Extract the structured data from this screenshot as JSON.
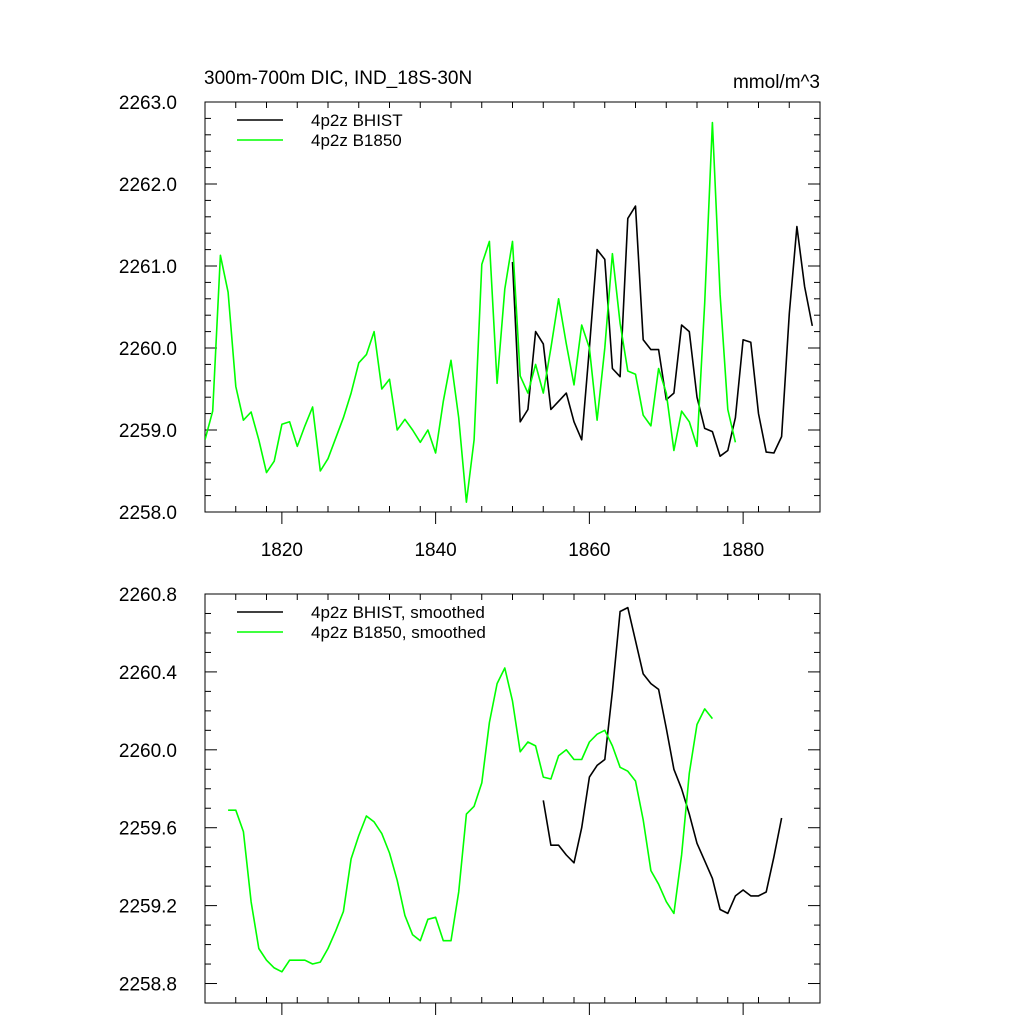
{
  "chart_data": [
    {
      "type": "line",
      "title": "300m-700m DIC, IND_18S-30N",
      "units": "mmol/m^3",
      "xlim": [
        1810,
        1890
      ],
      "ylim": [
        2258.0,
        2263.0
      ],
      "xticks": [
        {
          "value": 1820,
          "label": "1820"
        },
        {
          "value": 1840,
          "label": "1840"
        },
        {
          "value": 1860,
          "label": "1860"
        },
        {
          "value": 1880,
          "label": "1880"
        }
      ],
      "yticks": [
        {
          "value": 2258.0,
          "label": "2258.0"
        },
        {
          "value": 2259.0,
          "label": "2259.0"
        },
        {
          "value": 2260.0,
          "label": "2260.0"
        },
        {
          "value": 2261.0,
          "label": "2261.0"
        },
        {
          "value": 2262.0,
          "label": "2262.0"
        },
        {
          "value": 2263.0,
          "label": "2263.0"
        }
      ],
      "legend_position": "top-left",
      "series": [
        {
          "name": "4p2z BHIST",
          "color": "#000000",
          "x": [
            1850,
            1851,
            1852,
            1853,
            1854,
            1855,
            1856,
            1857,
            1858,
            1859,
            1860,
            1861,
            1862,
            1863,
            1864,
            1865,
            1866,
            1867,
            1868,
            1869,
            1870,
            1871,
            1872,
            1873,
            1874,
            1875,
            1876,
            1877,
            1878,
            1879,
            1880,
            1881,
            1882,
            1883,
            1884,
            1885,
            1886,
            1887,
            1888,
            1889
          ],
          "y": [
            2261.05,
            2259.1,
            2259.25,
            2260.2,
            2260.05,
            2259.25,
            2259.35,
            2259.45,
            2259.1,
            2258.88,
            2260.0,
            2261.2,
            2261.08,
            2259.75,
            2259.65,
            2261.58,
            2261.73,
            2260.1,
            2259.98,
            2259.98,
            2259.37,
            2259.45,
            2260.28,
            2260.2,
            2259.4,
            2259.02,
            2258.98,
            2258.68,
            2258.75,
            2259.15,
            2260.1,
            2260.07,
            2259.2,
            2258.73,
            2258.72,
            2258.92,
            2260.42,
            2261.48,
            2260.75,
            2260.27
          ]
        },
        {
          "name": "4p2z B1850",
          "color": "#00ff00",
          "x": [
            1810,
            1811,
            1812,
            1813,
            1814,
            1815,
            1816,
            1817,
            1818,
            1819,
            1820,
            1821,
            1822,
            1823,
            1824,
            1825,
            1826,
            1827,
            1828,
            1829,
            1830,
            1831,
            1832,
            1833,
            1834,
            1835,
            1836,
            1837,
            1838,
            1839,
            1840,
            1841,
            1842,
            1843,
            1844,
            1845,
            1846,
            1847,
            1848,
            1849,
            1850,
            1851,
            1852,
            1853,
            1854,
            1855,
            1856,
            1857,
            1858,
            1859,
            1860,
            1861,
            1862,
            1863,
            1864,
            1865,
            1866,
            1867,
            1868,
            1869,
            1870,
            1871,
            1872,
            1873,
            1874,
            1875,
            1876,
            1877,
            1878,
            1879
          ],
          "y": [
            2258.88,
            2259.23,
            2261.13,
            2260.68,
            2259.53,
            2259.12,
            2259.22,
            2258.88,
            2258.48,
            2258.62,
            2259.07,
            2259.1,
            2258.8,
            2259.05,
            2259.28,
            2258.5,
            2258.65,
            2258.9,
            2259.15,
            2259.45,
            2259.82,
            2259.92,
            2260.2,
            2259.5,
            2259.62,
            2259.0,
            2259.13,
            2259.0,
            2258.85,
            2259.0,
            2258.72,
            2259.35,
            2259.85,
            2259.15,
            2258.12,
            2258.88,
            2261.02,
            2261.3,
            2259.57,
            2260.72,
            2261.3,
            2259.66,
            2259.45,
            2259.8,
            2259.45,
            2260.0,
            2260.6,
            2260.05,
            2259.55,
            2260.28,
            2260.0,
            2259.12,
            2260.0,
            2261.15,
            2260.3,
            2259.72,
            2259.68,
            2259.18,
            2259.05,
            2259.75,
            2259.45,
            2258.75,
            2259.23,
            2259.1,
            2258.8,
            2260.55,
            2262.75,
            2260.65,
            2259.25,
            2258.85
          ]
        }
      ]
    },
    {
      "type": "line",
      "xlim": [
        1810,
        1890
      ],
      "ylim": [
        2258.7,
        2260.8
      ],
      "xticks": [
        {
          "value": 1820,
          "label": ""
        },
        {
          "value": 1840,
          "label": ""
        },
        {
          "value": 1860,
          "label": ""
        },
        {
          "value": 1880,
          "label": ""
        }
      ],
      "yticks": [
        {
          "value": 2258.8,
          "label": "2258.8"
        },
        {
          "value": 2259.2,
          "label": "2259.2"
        },
        {
          "value": 2259.6,
          "label": "2259.6"
        },
        {
          "value": 2260.0,
          "label": "2260.0"
        },
        {
          "value": 2260.4,
          "label": "2260.4"
        },
        {
          "value": 2260.8,
          "label": "2260.8"
        }
      ],
      "legend_position": "top-left",
      "series": [
        {
          "name": "4p2z BHIST, smoothed",
          "color": "#000000",
          "x": [
            1854,
            1855,
            1856,
            1857,
            1858,
            1859,
            1860,
            1861,
            1862,
            1863,
            1864,
            1865,
            1866,
            1867,
            1868,
            1869,
            1870,
            1871,
            1872,
            1873,
            1874,
            1875,
            1876,
            1877,
            1878,
            1879,
            1880,
            1881,
            1882,
            1883,
            1884,
            1885
          ],
          "y": [
            2259.74,
            2259.51,
            2259.51,
            2259.46,
            2259.42,
            2259.6,
            2259.86,
            2259.92,
            2259.95,
            2260.3,
            2260.71,
            2260.73,
            2260.56,
            2260.39,
            2260.34,
            2260.31,
            2260.11,
            2259.9,
            2259.8,
            2259.67,
            2259.52,
            2259.43,
            2259.34,
            2259.18,
            2259.16,
            2259.25,
            2259.28,
            2259.25,
            2259.25,
            2259.27,
            2259.45,
            2259.65
          ]
        },
        {
          "name": "4p2z B1850, smoothed",
          "color": "#00ff00",
          "x": [
            1813,
            1814,
            1815,
            1816,
            1817,
            1818,
            1819,
            1820,
            1821,
            1822,
            1823,
            1824,
            1825,
            1826,
            1827,
            1828,
            1829,
            1830,
            1831,
            1832,
            1833,
            1834,
            1835,
            1836,
            1837,
            1838,
            1839,
            1840,
            1841,
            1842,
            1843,
            1844,
            1845,
            1846,
            1847,
            1848,
            1849,
            1850,
            1851,
            1852,
            1853,
            1854,
            1855,
            1856,
            1857,
            1858,
            1859,
            1860,
            1861,
            1862,
            1863,
            1864,
            1865,
            1866,
            1867,
            1868,
            1869,
            1870,
            1871,
            1872,
            1873,
            1874,
            1875,
            1876
          ],
          "y": [
            2259.69,
            2259.69,
            2259.58,
            2259.22,
            2258.98,
            2258.92,
            2258.88,
            2258.86,
            2258.92,
            2258.92,
            2258.92,
            2258.9,
            2258.91,
            2258.98,
            2259.07,
            2259.17,
            2259.44,
            2259.56,
            2259.66,
            2259.63,
            2259.57,
            2259.47,
            2259.33,
            2259.15,
            2259.05,
            2259.02,
            2259.13,
            2259.14,
            2259.02,
            2259.02,
            2259.27,
            2259.67,
            2259.71,
            2259.83,
            2260.14,
            2260.34,
            2260.42,
            2260.25,
            2259.99,
            2260.04,
            2260.02,
            2259.86,
            2259.85,
            2259.97,
            2260.0,
            2259.95,
            2259.95,
            2260.04,
            2260.08,
            2260.1,
            2260.02,
            2259.91,
            2259.89,
            2259.84,
            2259.64,
            2259.38,
            2259.31,
            2259.22,
            2259.16,
            2259.46,
            2259.88,
            2260.13,
            2260.21,
            2260.16
          ]
        }
      ]
    }
  ]
}
